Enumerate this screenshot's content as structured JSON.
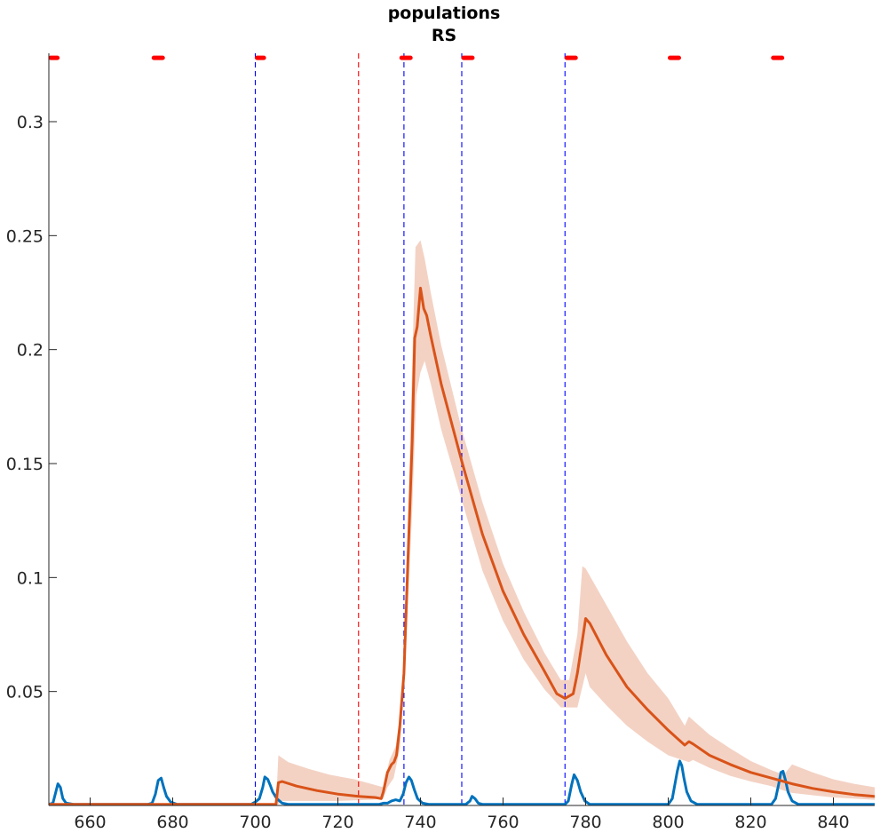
{
  "chart_data": {
    "type": "line",
    "title": [
      "populations",
      "RS"
    ],
    "xlim": [
      650,
      850
    ],
    "ylim": [
      0,
      0.33
    ],
    "x_ticks": [
      660,
      680,
      700,
      720,
      740,
      760,
      780,
      800,
      820,
      840
    ],
    "y_ticks": [
      0.05,
      0.1,
      0.15,
      0.2,
      0.25,
      0.3
    ],
    "y_tick_labels": [
      "0.05",
      "0.1",
      "0.15",
      "0.2",
      "0.25",
      "0.3"
    ],
    "grid": false,
    "vertical_lines": [
      {
        "x": 700,
        "color": "#0000ff",
        "style": "dashed"
      },
      {
        "x": 725,
        "color": "#ff0000",
        "style": "dashed"
      },
      {
        "x": 736,
        "color": "#0000ff",
        "style": "dashed"
      },
      {
        "x": 750,
        "color": "#0000ff",
        "style": "dashed"
      },
      {
        "x": 775,
        "color": "#0000ff",
        "style": "dashed"
      }
    ],
    "stimulus_marks": {
      "color": "#ff0000",
      "y": 0.328,
      "intervals": [
        [
          650,
          652.5
        ],
        [
          675,
          678
        ],
        [
          700,
          702.5
        ],
        [
          735,
          738
        ],
        [
          750,
          753
        ],
        [
          775,
          778
        ],
        [
          800,
          803
        ],
        [
          825,
          828
        ]
      ]
    },
    "series": [
      {
        "color": "#0072bd",
        "points": [
          [
            650,
            0.0005
          ],
          [
            651,
            0.001
          ],
          [
            651.7,
            0.006
          ],
          [
            652.2,
            0.0095
          ],
          [
            652.8,
            0.008
          ],
          [
            653.4,
            0.003
          ],
          [
            654.2,
            0.001
          ],
          [
            656,
            0.0005
          ],
          [
            674,
            0.0005
          ],
          [
            675,
            0.001
          ],
          [
            675.8,
            0.005
          ],
          [
            676.5,
            0.011
          ],
          [
            677.2,
            0.012
          ],
          [
            677.8,
            0.008
          ],
          [
            678.5,
            0.004
          ],
          [
            679.5,
            0.0015
          ],
          [
            681,
            0.0005
          ],
          [
            699,
            0.0005
          ],
          [
            700,
            0.0015
          ],
          [
            701,
            0.003
          ],
          [
            701.8,
            0.008
          ],
          [
            702.3,
            0.0125
          ],
          [
            703,
            0.0115
          ],
          [
            703.6,
            0.009
          ],
          [
            704.2,
            0.006
          ],
          [
            705.2,
            0.003
          ],
          [
            706.5,
            0.001
          ],
          [
            708,
            0.0005
          ],
          [
            730,
            0.0005
          ],
          [
            731,
            0.001
          ],
          [
            732,
            0.001
          ],
          [
            733,
            0.002
          ],
          [
            734,
            0.0025
          ],
          [
            735,
            0.002
          ],
          [
            735.8,
            0.005
          ],
          [
            736.5,
            0.01
          ],
          [
            737.2,
            0.0125
          ],
          [
            737.8,
            0.011
          ],
          [
            738.5,
            0.007
          ],
          [
            739.3,
            0.003
          ],
          [
            740.5,
            0.001
          ],
          [
            742,
            0.0005
          ],
          [
            751,
            0.0005
          ],
          [
            752,
            0.002
          ],
          [
            752.5,
            0.004
          ],
          [
            753.2,
            0.003
          ],
          [
            754,
            0.001
          ],
          [
            755,
            0.0005
          ],
          [
            775,
            0.0005
          ],
          [
            775.8,
            0.002
          ],
          [
            776.6,
            0.009
          ],
          [
            777.2,
            0.0135
          ],
          [
            778,
            0.011
          ],
          [
            778.8,
            0.006
          ],
          [
            779.8,
            0.002
          ],
          [
            781,
            0.0005
          ],
          [
            800,
            0.0005
          ],
          [
            801,
            0.003
          ],
          [
            801.6,
            0.009
          ],
          [
            802.2,
            0.015
          ],
          [
            802.8,
            0.0195
          ],
          [
            803.3,
            0.0175
          ],
          [
            803.8,
            0.012
          ],
          [
            804.5,
            0.006
          ],
          [
            805.5,
            0.002
          ],
          [
            807,
            0.0005
          ],
          [
            825,
            0.0005
          ],
          [
            826,
            0.003
          ],
          [
            826.7,
            0.009
          ],
          [
            827.3,
            0.0145
          ],
          [
            827.8,
            0.015
          ],
          [
            828.4,
            0.011
          ],
          [
            829,
            0.006
          ],
          [
            830,
            0.002
          ],
          [
            831.5,
            0.0005
          ],
          [
            850,
            0.0005
          ]
        ]
      },
      {
        "color": "#d95319",
        "points": [
          [
            650,
            0.0005
          ],
          [
            700,
            0.0005
          ],
          [
            703,
            0.0005
          ],
          [
            705,
            0.0005
          ],
          [
            705.6,
            0.01
          ],
          [
            706.5,
            0.0105
          ],
          [
            710,
            0.0085
          ],
          [
            715,
            0.0065
          ],
          [
            720,
            0.005
          ],
          [
            725,
            0.004
          ],
          [
            729,
            0.0035
          ],
          [
            730.5,
            0.003
          ],
          [
            731,
            0.006
          ],
          [
            732,
            0.0145
          ],
          [
            733,
            0.018
          ],
          [
            733.6,
            0.019
          ],
          [
            734.2,
            0.022
          ],
          [
            735,
            0.035
          ],
          [
            736,
            0.058
          ],
          [
            737,
            0.11
          ],
          [
            738,
            0.16
          ],
          [
            738.6,
            0.205
          ],
          [
            739.2,
            0.21
          ],
          [
            740,
            0.227
          ],
          [
            740.8,
            0.218
          ],
          [
            741.5,
            0.215
          ],
          [
            742.5,
            0.206
          ],
          [
            745,
            0.185
          ],
          [
            750,
            0.151
          ],
          [
            755,
            0.119
          ],
          [
            760,
            0.094
          ],
          [
            765,
            0.075
          ],
          [
            770,
            0.059
          ],
          [
            773,
            0.049
          ],
          [
            775,
            0.047
          ],
          [
            777,
            0.049
          ],
          [
            778,
            0.058
          ],
          [
            779,
            0.07
          ],
          [
            780,
            0.082
          ],
          [
            781,
            0.08
          ],
          [
            785,
            0.066
          ],
          [
            790,
            0.052
          ],
          [
            795,
            0.042
          ],
          [
            800,
            0.033
          ],
          [
            804,
            0.0265
          ],
          [
            805,
            0.028
          ],
          [
            806,
            0.027
          ],
          [
            810,
            0.022
          ],
          [
            815,
            0.018
          ],
          [
            820,
            0.0145
          ],
          [
            825,
            0.012
          ],
          [
            828,
            0.0105
          ],
          [
            830,
            0.0095
          ],
          [
            835,
            0.0075
          ],
          [
            840,
            0.006
          ],
          [
            845,
            0.0048
          ],
          [
            850,
            0.004
          ]
        ]
      }
    ],
    "confidence_band": {
      "color": "#f3d2c4",
      "upper": [
        [
          705,
          0.0005
        ],
        [
          705.6,
          0.022
        ],
        [
          708,
          0.019
        ],
        [
          713,
          0.016
        ],
        [
          718,
          0.0135
        ],
        [
          724,
          0.0115
        ],
        [
          728,
          0.0095
        ],
        [
          731,
          0.008
        ],
        [
          732.5,
          0.02
        ],
        [
          734,
          0.026
        ],
        [
          735.5,
          0.045
        ],
        [
          737,
          0.125
        ],
        [
          738,
          0.195
        ],
        [
          738.8,
          0.245
        ],
        [
          740,
          0.248
        ],
        [
          741,
          0.24
        ],
        [
          742.5,
          0.225
        ],
        [
          745,
          0.202
        ],
        [
          750,
          0.165
        ],
        [
          755,
          0.133
        ],
        [
          760,
          0.106
        ],
        [
          765,
          0.085
        ],
        [
          770,
          0.067
        ],
        [
          774,
          0.055
        ],
        [
          776,
          0.055
        ],
        [
          778,
          0.075
        ],
        [
          779.2,
          0.105
        ],
        [
          780,
          0.104
        ],
        [
          785,
          0.088
        ],
        [
          790,
          0.072
        ],
        [
          795,
          0.058
        ],
        [
          800,
          0.047
        ],
        [
          804,
          0.035
        ],
        [
          805,
          0.039
        ],
        [
          810,
          0.031
        ],
        [
          815,
          0.025
        ],
        [
          820,
          0.0195
        ],
        [
          825,
          0.0155
        ],
        [
          828,
          0.0135
        ],
        [
          830,
          0.018
        ],
        [
          835,
          0.0145
        ],
        [
          840,
          0.0115
        ],
        [
          845,
          0.0095
        ],
        [
          850,
          0.008
        ]
      ],
      "lower": [
        [
          850,
          0.0025
        ],
        [
          845,
          0.003
        ],
        [
          840,
          0.0035
        ],
        [
          835,
          0.0045
        ],
        [
          830,
          0.0055
        ],
        [
          828,
          0.0065
        ],
        [
          825,
          0.0085
        ],
        [
          820,
          0.0105
        ],
        [
          815,
          0.013
        ],
        [
          810,
          0.0165
        ],
        [
          806,
          0.02
        ],
        [
          805,
          0.019
        ],
        [
          800,
          0.022
        ],
        [
          795,
          0.028
        ],
        [
          790,
          0.035
        ],
        [
          785,
          0.044
        ],
        [
          781,
          0.052
        ],
        [
          780,
          0.058
        ],
        [
          778,
          0.043
        ],
        [
          776,
          0.043
        ],
        [
          774,
          0.043
        ],
        [
          770,
          0.051
        ],
        [
          765,
          0.064
        ],
        [
          760,
          0.081
        ],
        [
          755,
          0.103
        ],
        [
          750,
          0.134
        ],
        [
          745,
          0.165
        ],
        [
          742.5,
          0.185
        ],
        [
          741,
          0.195
        ],
        [
          740,
          0.19
        ],
        [
          739,
          0.18
        ],
        [
          738,
          0.13
        ],
        [
          737,
          0.09
        ],
        [
          736,
          0.05
        ],
        [
          735,
          0.025
        ],
        [
          733.5,
          0.012
        ],
        [
          732,
          0.008
        ],
        [
          731,
          0.003
        ],
        [
          728,
          0.0025
        ],
        [
          720,
          0.002
        ],
        [
          712,
          0.002
        ],
        [
          706,
          0.002
        ],
        [
          705.6,
          0.0005
        ]
      ]
    }
  }
}
